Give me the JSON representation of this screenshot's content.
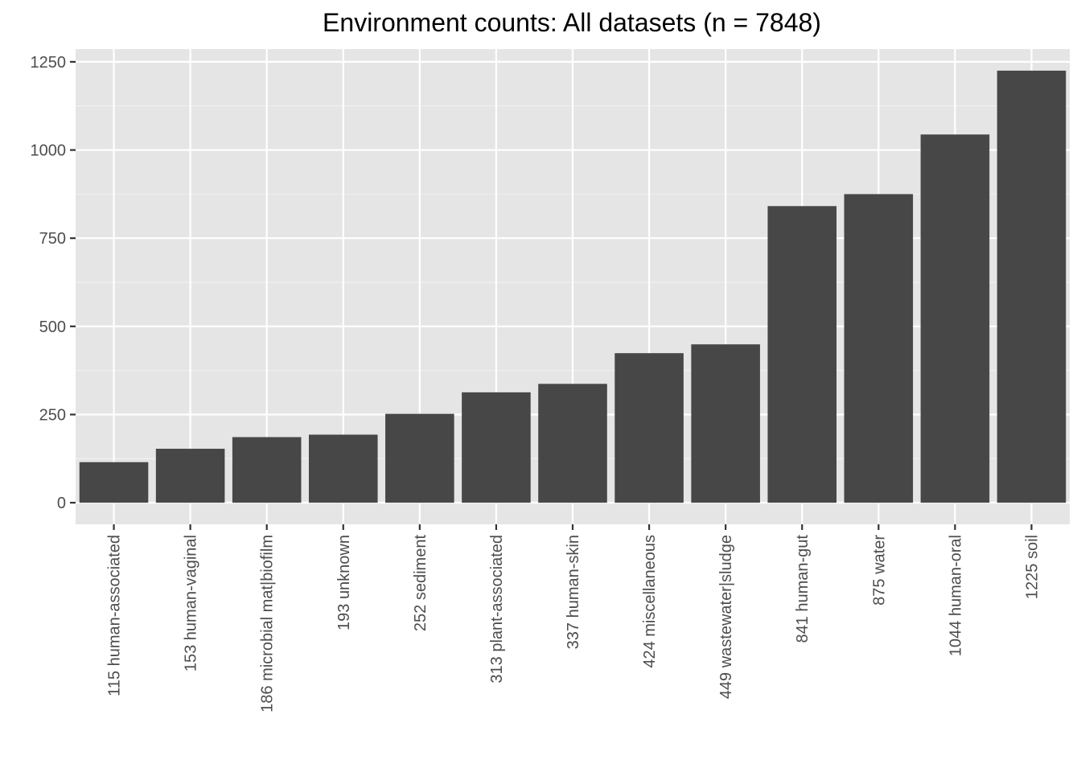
{
  "chart_data": {
    "type": "bar",
    "title": "Environment counts: All datasets (n = 7848)",
    "xlabel": "",
    "ylabel": "",
    "categories": [
      "115 human-associated",
      "153 human-vaginal",
      "186 microbial mat|biofilm",
      "193 unknown",
      "252 sediment",
      "313 plant-associated",
      "337 human-skin",
      "424 miscellaneous",
      "449 wastewater|sludge",
      "841 human-gut",
      "875 water",
      "1044 human-oral",
      "1225 soil"
    ],
    "values": [
      115,
      153,
      186,
      193,
      252,
      313,
      337,
      424,
      449,
      841,
      875,
      1044,
      1225
    ],
    "ylim": [
      -61.25,
      1286.25
    ],
    "yticks": [
      0,
      250,
      500,
      750,
      1000,
      1250
    ],
    "grid": true,
    "legend": "none",
    "colors": {
      "panel_background": "#e5e5e5",
      "grid_major": "#ffffff",
      "grid_minor": "#f2f2f2",
      "bar_fill": "#474747",
      "tick_color": "#333333",
      "tick_label": "#4d4d4d",
      "title": "#000000"
    }
  }
}
